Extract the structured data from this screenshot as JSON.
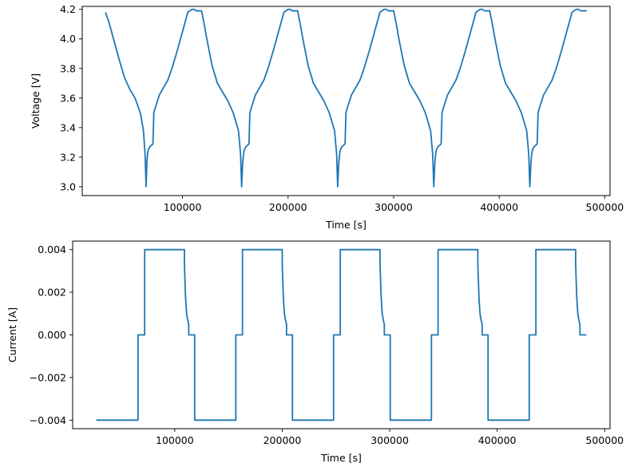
{
  "chart_data": [
    {
      "type": "line",
      "title": "",
      "xlabel": "Time [s]",
      "ylabel": "Voltage [V]",
      "xlim": [
        5000,
        505000
      ],
      "ylim": [
        2.94,
        4.22
      ],
      "xticks": [
        100000,
        200000,
        300000,
        400000,
        500000
      ],
      "xtick_labels": [
        "100000",
        "200000",
        "300000",
        "400000",
        "500000"
      ],
      "yticks": [
        3.0,
        3.2,
        3.4,
        3.6,
        3.8,
        4.0,
        4.2
      ],
      "ytick_labels": [
        "3.0",
        "3.2",
        "3.4",
        "3.6",
        "3.8",
        "4.0",
        "4.2"
      ],
      "grid": false,
      "series": [
        {
          "color": "#1f77b4",
          "x": [
            27000,
            30000,
            40000,
            45000,
            50000,
            55000,
            60000,
            63000,
            64500,
            65500,
            66200,
            66800,
            67500,
            69000,
            72000,
            72800,
            74000,
            78000,
            82000,
            86000,
            90000,
            95000,
            100000,
            105000,
            109000,
            111000,
            113000,
            115000,
            117000,
            118000,
            120000,
            123000,
            128000,
            133000,
            138000,
            143000,
            148000,
            153000,
            155000,
            156000,
            157000,
            157800,
            158500,
            160000,
            163000,
            163800,
            165000,
            169000,
            173000,
            177000,
            181000,
            186000,
            191000,
            196000,
            200000,
            202000,
            204000,
            206000,
            208000,
            209000,
            211000,
            214000,
            219000,
            224000,
            229000,
            234000,
            239000,
            244000,
            246000,
            247000,
            248000,
            248800,
            249500,
            251000,
            254000,
            254800,
            256000,
            260000,
            264000,
            268000,
            272000,
            277000,
            282000,
            287000,
            291000,
            293000,
            295000,
            297000,
            299000,
            300000,
            302000,
            305000,
            310000,
            315000,
            320000,
            325000,
            330000,
            335000,
            337000,
            338000,
            339000,
            339800,
            340500,
            342000,
            345000,
            345800,
            347000,
            351000,
            355000,
            359000,
            363000,
            368000,
            373000,
            378000,
            382000,
            384000,
            386000,
            388000,
            390000,
            391000,
            393000,
            396000,
            401000,
            406000,
            411000,
            416000,
            421000,
            426000,
            428000,
            429000,
            430000,
            430800,
            431500,
            433000,
            436000,
            436800,
            438000,
            442000,
            446000,
            450000,
            454000,
            459000,
            464000,
            469000,
            473000,
            475000,
            477000,
            479000,
            481000,
            483000
          ],
          "y": [
            4.18,
            4.12,
            3.86,
            3.74,
            3.66,
            3.6,
            3.5,
            3.38,
            3.22,
            3.0,
            3.16,
            3.22,
            3.25,
            3.27,
            3.29,
            3.5,
            3.53,
            3.62,
            3.67,
            3.72,
            3.8,
            3.92,
            4.05,
            4.18,
            4.2,
            4.2,
            4.19,
            4.19,
            4.19,
            4.19,
            4.12,
            4.0,
            3.82,
            3.7,
            3.64,
            3.58,
            3.5,
            3.38,
            3.22,
            3.0,
            3.16,
            3.22,
            3.25,
            3.27,
            3.29,
            3.5,
            3.53,
            3.62,
            3.67,
            3.72,
            3.8,
            3.92,
            4.05,
            4.18,
            4.2,
            4.2,
            4.19,
            4.19,
            4.19,
            4.19,
            4.12,
            4.0,
            3.82,
            3.7,
            3.64,
            3.58,
            3.5,
            3.38,
            3.22,
            3.0,
            3.16,
            3.22,
            3.25,
            3.27,
            3.29,
            3.5,
            3.53,
            3.62,
            3.67,
            3.72,
            3.8,
            3.92,
            4.05,
            4.18,
            4.2,
            4.2,
            4.19,
            4.19,
            4.19,
            4.19,
            4.12,
            4.0,
            3.82,
            3.7,
            3.64,
            3.58,
            3.5,
            3.38,
            3.22,
            3.0,
            3.16,
            3.22,
            3.25,
            3.27,
            3.29,
            3.5,
            3.53,
            3.62,
            3.67,
            3.72,
            3.8,
            3.92,
            4.05,
            4.18,
            4.2,
            4.2,
            4.19,
            4.19,
            4.19,
            4.19,
            4.12,
            4.0,
            3.82,
            3.7,
            3.64,
            3.58,
            3.5,
            3.38,
            3.22,
            3.0,
            3.16,
            3.22,
            3.25,
            3.27,
            3.29,
            3.5,
            3.53,
            3.62,
            3.67,
            3.72,
            3.8,
            3.92,
            4.05,
            4.18,
            4.2,
            4.2,
            4.19,
            4.19,
            4.19,
            4.19
          ]
        }
      ]
    },
    {
      "type": "line",
      "title": "",
      "xlabel": "Time [s]",
      "ylabel": "Current [A]",
      "xlim": [
        5000,
        505000
      ],
      "ylim": [
        -0.0044,
        0.0044
      ],
      "xticks": [
        100000,
        200000,
        300000,
        400000,
        500000
      ],
      "xtick_labels": [
        "100000",
        "200000",
        "300000",
        "400000",
        "500000"
      ],
      "yticks": [
        -0.004,
        -0.002,
        0.0,
        0.002,
        0.004
      ],
      "ytick_labels": [
        "−0.004",
        "−0.002",
        "0.000",
        "0.002",
        "0.004"
      ],
      "grid": false,
      "series": [
        {
          "color": "#1f77b4",
          "x": [
            27000,
            65800,
            65800,
            72000,
            72000,
            109000,
            109000,
            110000,
            111000,
            112000,
            112500,
            113000,
            113000,
            118500,
            118500,
            156800,
            156800,
            163000,
            163000,
            200000,
            200000,
            201000,
            202000,
            203000,
            203500,
            204000,
            204000,
            209500,
            209500,
            247800,
            247800,
            254000,
            254000,
            291000,
            291000,
            292000,
            293000,
            294000,
            294500,
            295000,
            295000,
            300500,
            300500,
            338800,
            338800,
            345000,
            345000,
            382000,
            382000,
            383000,
            384000,
            385000,
            385500,
            386000,
            386000,
            391500,
            391500,
            429800,
            429800,
            436000,
            436000,
            473000,
            473000,
            474000,
            475000,
            476000,
            476500,
            477000,
            477000,
            483000
          ],
          "y": [
            -0.004,
            -0.004,
            0.0,
            0.0,
            0.004,
            0.004,
            0.0033,
            0.0018,
            0.001,
            0.0007,
            0.0006,
            0.0005,
            0.0,
            0.0,
            -0.004,
            -0.004,
            0.0,
            0.0,
            0.004,
            0.004,
            0.0033,
            0.0018,
            0.001,
            0.0007,
            0.0006,
            0.0005,
            0.0,
            0.0,
            -0.004,
            -0.004,
            0.0,
            0.0,
            0.004,
            0.004,
            0.0033,
            0.0018,
            0.001,
            0.0007,
            0.0006,
            0.0005,
            0.0,
            0.0,
            -0.004,
            -0.004,
            0.0,
            0.0,
            0.004,
            0.004,
            0.0033,
            0.0018,
            0.001,
            0.0007,
            0.0006,
            0.0005,
            0.0,
            0.0,
            -0.004,
            -0.004,
            0.0,
            0.0,
            0.004,
            0.004,
            0.0033,
            0.0018,
            0.001,
            0.0007,
            0.0006,
            0.0005,
            0.0,
            0.0
          ]
        }
      ]
    }
  ]
}
